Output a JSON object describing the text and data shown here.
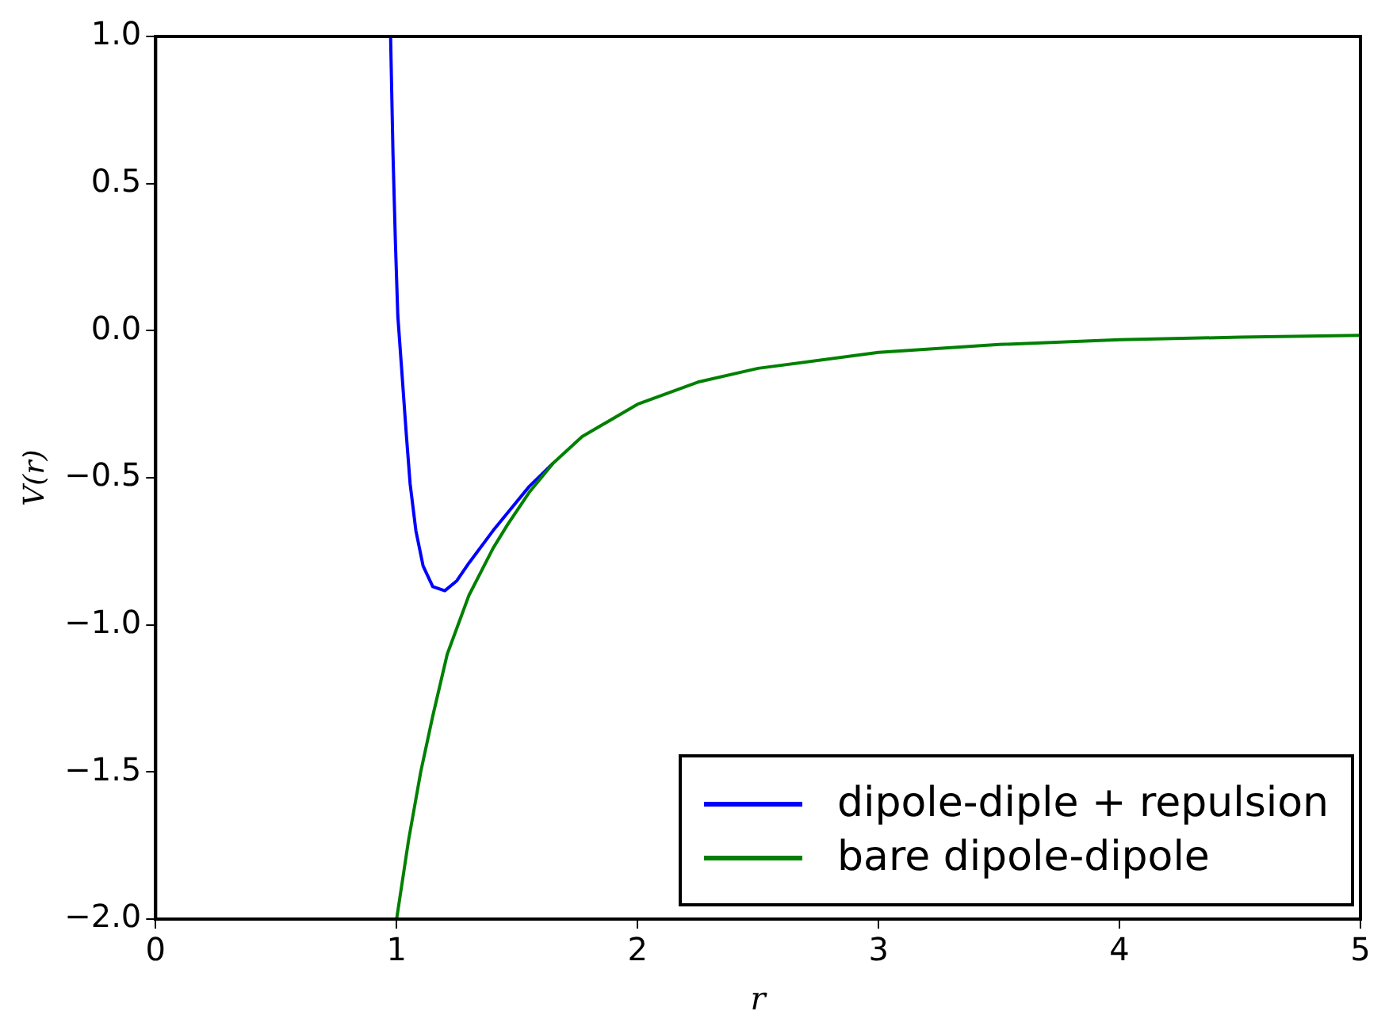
{
  "chart_data": {
    "type": "line",
    "xlabel": "r",
    "ylabel": "V(r)",
    "xlim": [
      0,
      5
    ],
    "xticks": [
      0,
      1,
      2,
      3,
      4,
      5
    ],
    "ylim": [
      -2,
      1
    ],
    "yticks": [
      {
        "value": -2,
        "label": "−2.0"
      },
      -1.5,
      {
        "value": -1,
        "label": "−1.0"
      },
      -0.5,
      {
        "value": 0,
        "label": "0.0"
      },
      0.5,
      {
        "value": 1,
        "label": "1.0"
      }
    ],
    "grid": false,
    "legend": "bottom right",
    "marker": "none",
    "line_style": "solid",
    "series": [
      {
        "name": "dipole-diple + repulsion",
        "color": "#0000ff",
        "x": [
          0.975,
          0.985,
          0.995,
          1.005,
          1.02,
          1.04,
          1.056,
          1.08,
          1.11,
          1.15,
          1.2,
          1.25,
          1.3,
          1.4,
          1.46,
          1.55,
          1.65
        ],
        "values": [
          1.0,
          0.6,
          0.3,
          0.05,
          -0.12,
          -0.35,
          -0.52,
          -0.68,
          -0.8,
          -0.87,
          -0.884,
          -0.85,
          -0.79,
          -0.68,
          -0.62,
          -0.53,
          -0.45
        ]
      },
      {
        "name": "bare dipole-dipole",
        "color": "#008000",
        "x": [
          1,
          1.05,
          1.1,
          1.15,
          1.21,
          1.3,
          1.4,
          1.46,
          1.55,
          1.65,
          1.77,
          2,
          2.25,
          2.5,
          3,
          3.5,
          4,
          4.5,
          5
        ],
        "values": [
          -2,
          -1.73,
          -1.5,
          -1.31,
          -1.1,
          -0.9,
          -0.74,
          -0.66,
          -0.55,
          -0.45,
          -0.36,
          -0.25,
          -0.175,
          -0.128,
          -0.074,
          -0.047,
          -0.031,
          -0.022,
          -0.016
        ]
      }
    ]
  }
}
